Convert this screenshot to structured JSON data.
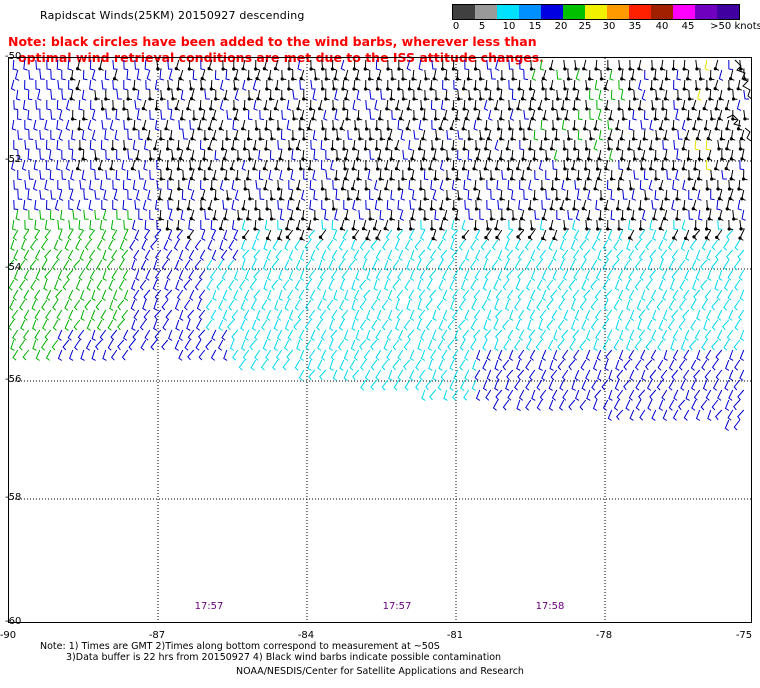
{
  "title": "Rapidscat Winds(25KM) 20150927 descending",
  "note_line1": "Note: black circles have been added to the wind barbs, wherever less than",
  "note_line2": "optimal wind retrieval conditions are met due to the ISS attitude changes.",
  "legend": {
    "labels": [
      "0",
      "5",
      "10",
      "15",
      "20",
      "25",
      "30",
      "35",
      "40",
      "45",
      ">50 knots"
    ],
    "colors": [
      "#404040",
      "#9a9a9a",
      "#00e0ff",
      "#0090ff",
      "#0000e0",
      "#00c000",
      "#f0f000",
      "#ff9a00",
      "#ff2000",
      "#a02000",
      "#ff00ff",
      "#7000c0",
      "#4000a0"
    ]
  },
  "axes": {
    "lat_ticks": [
      "-50",
      "-52",
      "-54",
      "-56",
      "-58",
      "-60"
    ],
    "lon_ticks": [
      "-90",
      "-87",
      "-84",
      "-81",
      "-78",
      "-75"
    ]
  },
  "pass_times": [
    "17:57",
    "17:57",
    "17:58"
  ],
  "footer": {
    "line1": "Note: 1) Times are GMT 2)Times along bottom correspond to measurement at ~50S",
    "line2": "3)Data buffer is 22 hrs from 20150927 4) Black wind barbs indicate possible contamination",
    "line3": "NOAA/NESDIS/Center for Satellite Applications and Research"
  },
  "map_colors": {
    "black": "#000000",
    "cyan": "#00d8f0",
    "blue": "#0000d0",
    "green": "#00b000",
    "yellow": "#e8e000"
  }
}
